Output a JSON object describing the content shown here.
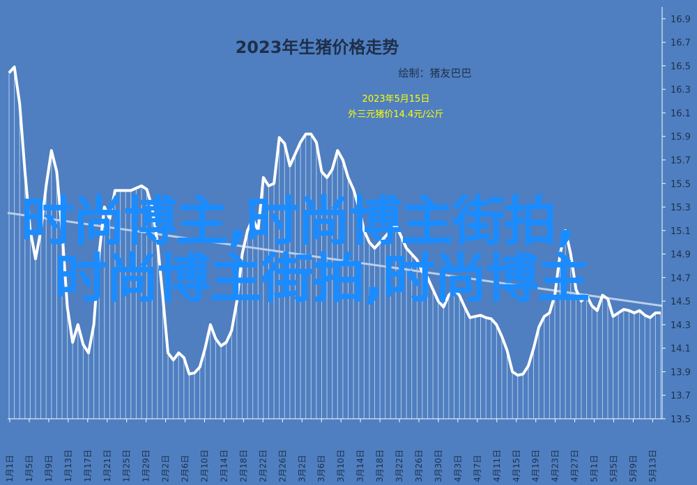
{
  "chart_data": {
    "type": "line",
    "title": "2023年生猪价格走势",
    "subtitle": "绘制：猪友巴巴",
    "annotation": {
      "line1": "2023年5月15日",
      "line2": "外三元猪价14.4元/公斤"
    },
    "xlabel": "",
    "ylabel": "",
    "ylim": [
      13.5,
      17.0
    ],
    "y_ticks": [
      13.5,
      13.7,
      13.9,
      14.1,
      14.3,
      14.5,
      14.7,
      14.9,
      15.1,
      15.3,
      15.5,
      15.7,
      15.9,
      16.1,
      16.3,
      16.5,
      16.7,
      16.9
    ],
    "x_tick_labels": [
      "1月1日",
      "1月5日",
      "1月9日",
      "1月13日",
      "1月17日",
      "1月21日",
      "1月25日",
      "1月29日",
      "2月2日",
      "2月6日",
      "2月10日",
      "2月14日",
      "2月18日",
      "2月22日",
      "2月26日",
      "3月2日",
      "3月6日",
      "3月10日",
      "3月14日",
      "3月18日",
      "3月22日",
      "3月26日",
      "3月30日",
      "4月3日",
      "4月7日",
      "4月11日",
      "4月15日",
      "4月19日",
      "4月23日",
      "4月27日",
      "5月1日",
      "5月5日",
      "5月9日",
      "5月13日"
    ],
    "series": [
      {
        "values": [
          16.44,
          16.49,
          16.18,
          15.6,
          15.1,
          14.86,
          15.1,
          15.48,
          15.78,
          15.6,
          15.1,
          14.45,
          14.15,
          14.3,
          14.13,
          14.06,
          14.3,
          14.9,
          15.3,
          15.2,
          15.44,
          15.44,
          15.44,
          15.44,
          15.46,
          15.48,
          15.45,
          15.3,
          15.0,
          14.55,
          14.06,
          14.0,
          14.06,
          14.02,
          13.88,
          13.89,
          13.94,
          14.1,
          14.3,
          14.18,
          14.12,
          14.15,
          14.25,
          14.5,
          14.9,
          15.1,
          15.2,
          15.1,
          15.55,
          15.48,
          15.5,
          15.89,
          15.84,
          15.65,
          15.75,
          15.85,
          15.92,
          15.92,
          15.85,
          15.6,
          15.55,
          15.62,
          15.78,
          15.7,
          15.55,
          15.45,
          15.3,
          15.1,
          15.0,
          14.95,
          15.0,
          15.05,
          15.1,
          15.15,
          15.05,
          14.95,
          14.9,
          14.85,
          14.75,
          14.7,
          14.6,
          14.5,
          14.45,
          14.55,
          14.6,
          14.55,
          14.45,
          14.36,
          14.37,
          14.38,
          14.36,
          14.35,
          14.3,
          14.2,
          14.08,
          13.9,
          13.87,
          13.88,
          13.95,
          14.1,
          14.28,
          14.37,
          14.4,
          14.55,
          14.9,
          15.1,
          14.9,
          14.6,
          14.5,
          14.55,
          14.46,
          14.42,
          14.55,
          14.52,
          14.37,
          14.4,
          14.43,
          14.42,
          14.4,
          14.42,
          14.38,
          14.36,
          14.4,
          14.4
        ]
      }
    ],
    "trendline": {
      "start": 15.25,
      "end": 14.46
    },
    "grid": false,
    "legend": "none"
  },
  "watermark": {
    "line1": "时尚博主,时尚博主街拍,",
    "line2": "时尚博主街拍,时尚博主"
  }
}
